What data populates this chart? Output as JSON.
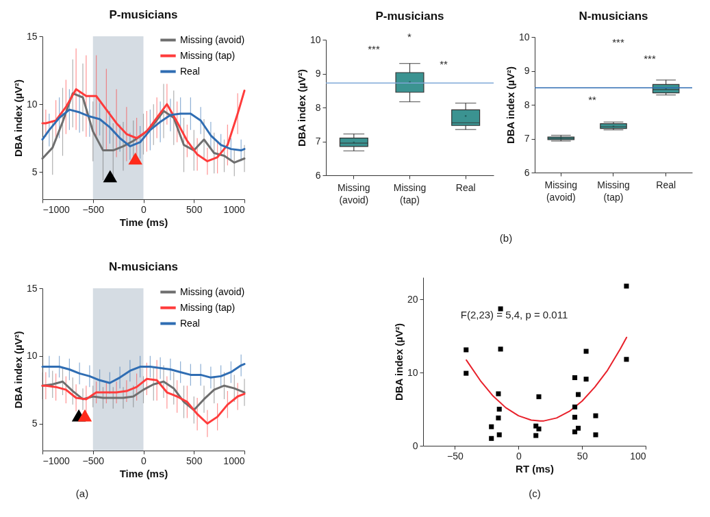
{
  "chart_data": [
    {
      "type": "line",
      "title": "P-musicians",
      "xlabel": "Time (ms)",
      "ylabel": "DBA index (µV²)",
      "xlim": [
        -1000,
        1000
      ],
      "ylim": [
        3,
        15
      ],
      "xticks": [
        {
          "value": -1000,
          "label": "−1000"
        },
        {
          "value": -500,
          "label": "−500"
        },
        0,
        500,
        1000
      ],
      "yticks": [
        5,
        10,
        15
      ],
      "legend": "top right",
      "x": [
        -1000,
        -900,
        -800,
        -700,
        -600,
        -500,
        -400,
        -300,
        -200,
        -100,
        0,
        100,
        200,
        300,
        400,
        500,
        600,
        700,
        800,
        900,
        1000
      ],
      "bands": [
        {
          "axis": "x",
          "from": -500,
          "to": 0,
          "color": "#d5dce3"
        }
      ],
      "series": [
        {
          "name": "Missing (avoid)",
          "color": "#6e6e6e",
          "values": [
            6.0,
            6.8,
            8.7,
            10.8,
            10.5,
            8.0,
            6.6,
            6.6,
            6.9,
            7.3,
            7.8,
            8.5,
            9.5,
            9.0,
            7.0,
            6.6,
            7.4,
            6.4,
            6.2,
            5.7,
            6.0
          ],
          "errors": [
            1.2,
            2,
            2.5,
            2.5,
            2.5,
            2.2,
            2.2,
            2,
            1.8,
            1.5,
            1.5,
            1.5,
            2,
            2,
            2,
            1.5,
            1.5,
            1.5,
            1.2,
            1,
            1
          ]
        },
        {
          "name": "Missing (tap)",
          "color": "#ff3b3b",
          "x": [
            -1000,
            -967,
            -867,
            -767,
            -667,
            -567,
            -467,
            -367,
            -267,
            -167,
            -67,
            33,
            133,
            233,
            333,
            433,
            533,
            633,
            733,
            833,
            933,
            1000
          ],
          "values": [
            8.6,
            8.6,
            8.8,
            9.8,
            11.1,
            10.6,
            10.6,
            9.6,
            8.6,
            7.8,
            7.5,
            8.0,
            9.0,
            10.0,
            8.7,
            7.3,
            6.3,
            5.8,
            6.1,
            7.0,
            9.3,
            11.0
          ],
          "errors": [
            null,
            1,
            1.5,
            2,
            3,
            3,
            3,
            3,
            2.5,
            2,
            1.5,
            1.5,
            1.5,
            1.5,
            1.5,
            1.2,
            1.2,
            1,
            1.2,
            1.5,
            1.5,
            null
          ]
        },
        {
          "name": "Real",
          "color": "#2f6db3",
          "x": [
            -1000,
            -933,
            -833,
            -733,
            -633,
            -533,
            -433,
            -333,
            -233,
            -133,
            -33,
            67,
            167,
            267,
            367,
            467,
            567,
            667,
            767,
            867,
            967,
            1000
          ],
          "values": [
            7.4,
            8.1,
            9.0,
            9.6,
            9.4,
            9.1,
            8.9,
            8.3,
            7.5,
            6.9,
            7.2,
            8.1,
            8.7,
            9.2,
            9.3,
            9.3,
            8.8,
            7.7,
            7.0,
            6.7,
            6.6,
            6.7
          ],
          "errors": [
            null,
            1.2,
            1.5,
            1.5,
            1.5,
            1.5,
            1.2,
            1.2,
            1,
            1,
            1.2,
            1.5,
            1.5,
            1.2,
            1.2,
            1.2,
            1,
            1,
            0.8,
            0.8,
            0.8,
            null
          ]
        },
        {
          "type": "scatter",
          "marker": "triangle",
          "color": "#000000",
          "x": [
            -330
          ],
          "values": [
            4.7
          ]
        },
        {
          "type": "scatter",
          "marker": "triangle",
          "color": "#ff2a1a",
          "x": [
            -80
          ],
          "values": [
            6.0
          ]
        }
      ]
    },
    {
      "type": "box",
      "title": "P-musicians",
      "ylabel": "DBA index (µV²)",
      "ylim": [
        6,
        10
      ],
      "yticks": [
        6,
        7,
        8,
        9,
        10
      ],
      "categories": [
        "Missing (avoid)",
        "Missing (tap)",
        "Real"
      ],
      "ref_lines": [
        {
          "axis": "y",
          "value": 8.72,
          "color": "#7fa9d8"
        }
      ],
      "annotations": [
        "*",
        "***",
        "**",
        "(b)"
      ],
      "series": [
        {
          "color": "#3b9391",
          "boxes": [
            {
              "low": 6.72,
              "q1": 6.85,
              "median": 6.95,
              "q3": 7.1,
              "high": 7.22,
              "mean": 6.97
            },
            {
              "low": 8.17,
              "q1": 8.45,
              "median": 8.72,
              "q3": 9.03,
              "high": 9.3,
              "mean": 8.75
            },
            {
              "low": 7.35,
              "q1": 7.47,
              "median": 7.55,
              "q3": 7.93,
              "high": 8.13,
              "mean": 7.75
            }
          ]
        }
      ]
    },
    {
      "type": "box",
      "title": "N-musicians",
      "ylabel": "DBA index (µV²)",
      "ylim": [
        6,
        10
      ],
      "yticks": [
        6,
        7,
        8,
        9,
        10
      ],
      "categories": [
        "Missing (avoid)",
        "Missing (tap)",
        "Real"
      ],
      "ref_lines": [
        {
          "axis": "y",
          "value": 8.5,
          "color": "#2f6db3"
        }
      ],
      "annotations": [
        "***",
        "***",
        "**"
      ],
      "series": [
        {
          "color": "#3b9391",
          "boxes": [
            {
              "low": 6.93,
              "q1": 6.97,
              "median": 7.0,
              "q3": 7.05,
              "high": 7.1,
              "mean": 7.01
            },
            {
              "low": 7.26,
              "q1": 7.3,
              "median": 7.35,
              "q3": 7.44,
              "high": 7.49,
              "mean": 7.36
            },
            {
              "low": 8.29,
              "q1": 8.35,
              "median": 8.45,
              "q3": 8.6,
              "high": 8.73,
              "mean": 8.47
            }
          ]
        }
      ]
    },
    {
      "type": "line",
      "title": "N-musicians",
      "xlabel": "Time (ms)",
      "ylabel": "DBA index (µV²)",
      "xlim": [
        -1000,
        1000
      ],
      "ylim": [
        3,
        15
      ],
      "xticks": [
        {
          "value": -1000,
          "label": "−1000"
        },
        {
          "value": -500,
          "label": "−500"
        },
        0,
        500,
        1000
      ],
      "yticks": [
        5,
        10,
        15
      ],
      "legend": "top right",
      "annotations": [
        "(a)"
      ],
      "x": [
        -1000,
        -900,
        -800,
        -700,
        -600,
        -500,
        -400,
        -300,
        -200,
        -100,
        0,
        100,
        200,
        300,
        400,
        500,
        600,
        700,
        800,
        900,
        1000
      ],
      "bands": [
        {
          "axis": "x",
          "from": -500,
          "to": 0,
          "color": "#d5dce3"
        }
      ],
      "series": [
        {
          "name": "Missing (avoid)",
          "color": "#6e6e6e",
          "values": [
            7.8,
            7.9,
            8.1,
            7.4,
            6.8,
            7.0,
            6.9,
            6.9,
            6.9,
            7.0,
            7.5,
            7.9,
            8.1,
            7.6,
            6.6,
            6.0,
            6.8,
            7.5,
            7.8,
            7.6,
            7.3
          ],
          "errors": [
            1,
            1,
            1,
            1,
            0.8,
            0.8,
            0.8,
            0.8,
            0.8,
            0.8,
            1,
            1.2,
            1.2,
            1.2,
            1.2,
            1,
            1,
            1,
            1,
            1,
            1
          ]
        },
        {
          "name": "Missing (tap)",
          "color": "#ff3b3b",
          "x": [
            -1000,
            -967,
            -867,
            -767,
            -667,
            -567,
            -467,
            -367,
            -267,
            -167,
            -67,
            33,
            133,
            233,
            333,
            433,
            533,
            633,
            733,
            833,
            933,
            1000
          ],
          "values": [
            7.8,
            7.8,
            7.7,
            7.5,
            6.9,
            6.8,
            7.3,
            7.3,
            7.3,
            7.4,
            7.7,
            8.3,
            8.2,
            7.3,
            7.0,
            6.6,
            5.7,
            5.0,
            5.5,
            6.4,
            7.0,
            7.2
          ],
          "errors": [
            null,
            1,
            1,
            1,
            1,
            1,
            0.8,
            0.8,
            0.8,
            0.8,
            1,
            1.2,
            1.5,
            1.2,
            1.2,
            1.2,
            1.2,
            1,
            1,
            1,
            1,
            null
          ]
        },
        {
          "name": "Real",
          "color": "#2f6db3",
          "x": [
            -1000,
            -933,
            -833,
            -733,
            -633,
            -533,
            -433,
            -333,
            -233,
            -133,
            -33,
            67,
            167,
            267,
            367,
            467,
            567,
            667,
            767,
            867,
            967,
            1000
          ],
          "values": [
            9.2,
            9.2,
            9.2,
            9.0,
            8.7,
            8.5,
            8.2,
            8.0,
            8.4,
            8.9,
            9.2,
            9.2,
            9.1,
            9.0,
            8.8,
            8.6,
            8.6,
            8.4,
            8.5,
            8.8,
            9.3,
            9.4
          ],
          "errors": [
            null,
            0.8,
            0.8,
            0.8,
            0.8,
            0.8,
            0.8,
            0.8,
            0.8,
            0.8,
            0.8,
            0.8,
            0.8,
            0.8,
            0.8,
            0.8,
            0.8,
            0.8,
            0.8,
            0.8,
            0.8,
            null
          ]
        },
        {
          "type": "scatter",
          "marker": "triangle",
          "color": "#000000",
          "x": [
            -640
          ],
          "values": [
            5.6
          ]
        },
        {
          "type": "scatter",
          "marker": "triangle",
          "color": "#ff2a1a",
          "x": [
            -580
          ],
          "values": [
            5.6
          ]
        }
      ]
    },
    {
      "type": "scatter",
      "xlabel": "RT (ms)",
      "ylabel": "DBA index (µV²)",
      "xlim": [
        -75,
        100
      ],
      "ylim": [
        0,
        23
      ],
      "xticks": [
        {
          "value": -50,
          "label": "−50"
        },
        0,
        50,
        100
      ],
      "yticks": [
        0,
        10,
        20
      ],
      "annotations": [
        "F(2,23) = 5,4, p = 0.011",
        "(c)"
      ],
      "series": [
        {
          "marker": "square",
          "color": "#000000",
          "x": [
            -41.2,
            -41.2,
            -14.1,
            -14.1,
            -15.8,
            -15.1,
            -15.8,
            -15.1,
            -21.3,
            -21.3,
            16.0,
            13.7,
            16.0,
            13.7,
            44.3,
            53.2,
            53.2,
            47.0,
            44.3,
            44.3,
            47.0,
            44.3,
            60.7,
            60.7,
            84.9,
            84.9
          ],
          "values": [
            13.1,
            9.9,
            18.7,
            13.2,
            7.1,
            5.0,
            3.8,
            1.5,
            2.6,
            1.0,
            6.7,
            2.7,
            2.3,
            1.4,
            9.3,
            9.1,
            12.9,
            7.0,
            5.3,
            3.9,
            2.4,
            1.9,
            4.1,
            1.5,
            21.8,
            11.8
          ]
        },
        {
          "type": "line",
          "color": "#e8202a",
          "x": [
            -41,
            -30,
            -20,
            -10,
            0,
            10,
            17,
            20,
            30,
            40,
            50,
            60,
            70,
            80,
            85
          ],
          "values": [
            11.7,
            8.9,
            6.8,
            5.2,
            4.1,
            3.5,
            3.4,
            3.4,
            3.8,
            4.7,
            6.1,
            8.0,
            10.3,
            13.2,
            14.8
          ]
        }
      ]
    }
  ]
}
